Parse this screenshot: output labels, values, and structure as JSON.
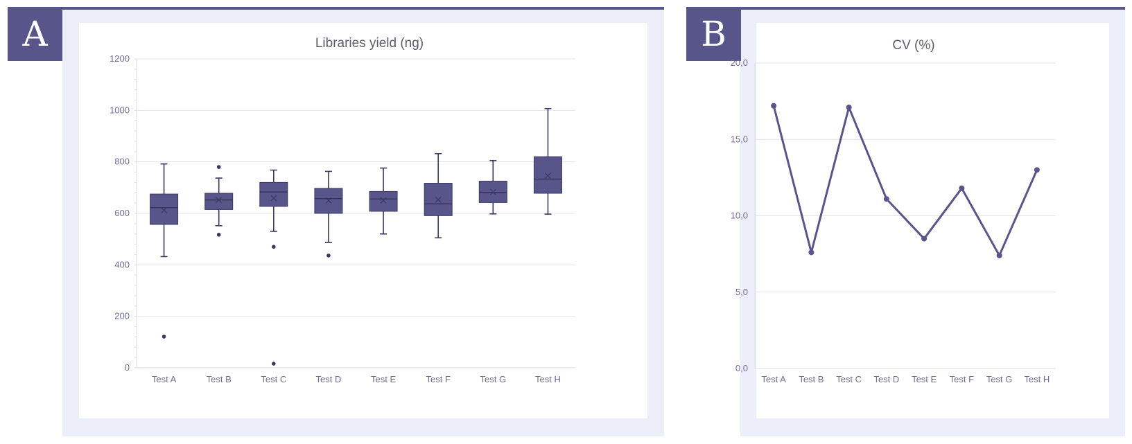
{
  "panels": {
    "a_letter": "A",
    "b_letter": "B"
  },
  "colors": {
    "accent": "#57558a",
    "panel_bg": "#eceff9",
    "grid": "#e3e3ec",
    "axis": "#d9d9e4",
    "text": "#6e6d98"
  },
  "chart_data": [
    {
      "type": "box",
      "title": "Libraries yield (ng)",
      "xlabel": "",
      "ylabel": "",
      "categories": [
        "Test A",
        "Test B",
        "Test C",
        "Test D",
        "Test E",
        "Test F",
        "Test G",
        "Test H"
      ],
      "ylim": [
        0,
        1200
      ],
      "yticks": [
        0,
        200,
        400,
        600,
        800,
        1000,
        1200
      ],
      "ytick_labels": [
        "0",
        "200",
        "400",
        "600",
        "800",
        "1000",
        "1200"
      ],
      "grid": true,
      "boxes": [
        {
          "whisker_low": 432,
          "q1": 557,
          "median": 622,
          "q3": 675,
          "whisker_high": 792,
          "mean": 612,
          "outliers": [
            121
          ]
        },
        {
          "whisker_low": 552,
          "q1": 615,
          "median": 652,
          "q3": 678,
          "whisker_high": 737,
          "mean": 652,
          "outliers": [
            517,
            780
          ]
        },
        {
          "whisker_low": 530,
          "q1": 627,
          "median": 683,
          "q3": 720,
          "whisker_high": 768,
          "mean": 659,
          "outliers": [
            470,
            16
          ]
        },
        {
          "whisker_low": 487,
          "q1": 600,
          "median": 657,
          "q3": 697,
          "whisker_high": 763,
          "mean": 650,
          "outliers": [
            436
          ]
        },
        {
          "whisker_low": 520,
          "q1": 608,
          "median": 656,
          "q3": 685,
          "whisker_high": 776,
          "mean": 650,
          "outliers": []
        },
        {
          "whisker_low": 505,
          "q1": 591,
          "median": 637,
          "q3": 717,
          "whisker_high": 832,
          "mean": 653,
          "outliers": []
        },
        {
          "whisker_low": 598,
          "q1": 642,
          "median": 681,
          "q3": 725,
          "whisker_high": 805,
          "mean": 683,
          "outliers": []
        },
        {
          "whisker_low": 597,
          "q1": 678,
          "median": 733,
          "q3": 820,
          "whisker_high": 1007,
          "mean": 746,
          "outliers": []
        }
      ]
    },
    {
      "type": "line",
      "title": "CV (%)",
      "xlabel": "",
      "ylabel": "",
      "categories": [
        "Test A",
        "Test B",
        "Test C",
        "Test D",
        "Test E",
        "Test F",
        "Test G",
        "Test H"
      ],
      "ylim": [
        0,
        20
      ],
      "yticks": [
        0,
        5,
        10,
        15,
        20
      ],
      "ytick_labels": [
        "0,0",
        "5,0",
        "10,0",
        "15,0",
        "20,0"
      ],
      "grid": true,
      "series": [
        {
          "values": [
            17.2,
            7.6,
            17.1,
            11.1,
            8.5,
            11.8,
            7.4,
            13.0
          ]
        }
      ]
    }
  ]
}
